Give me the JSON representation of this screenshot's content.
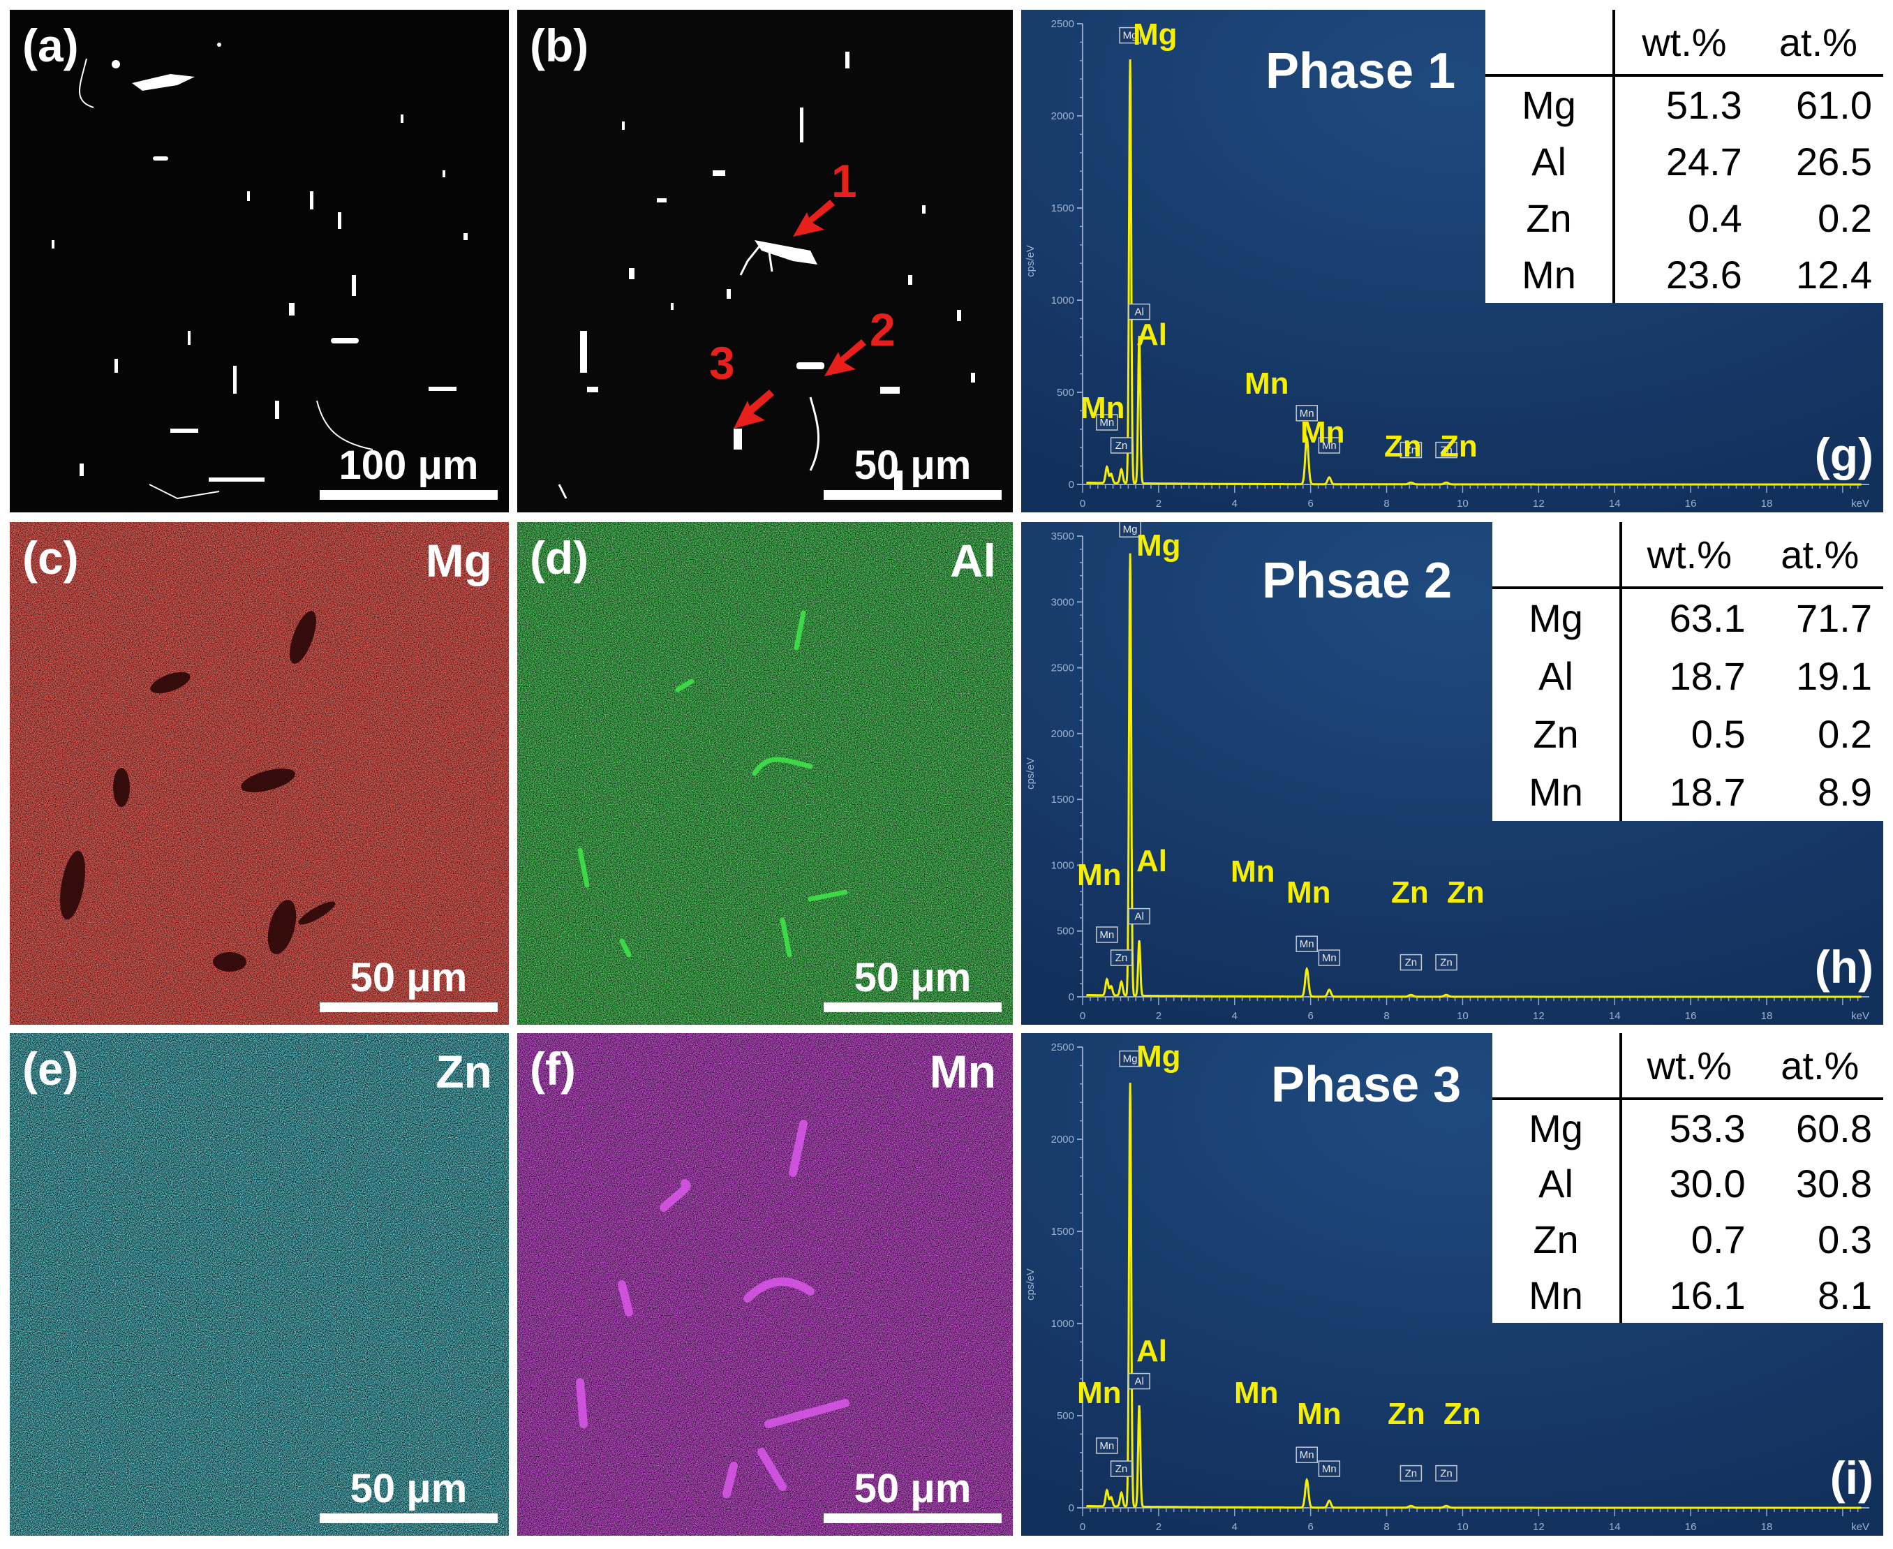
{
  "micrographs": {
    "a": {
      "label": "(a)",
      "scale": "100 μm"
    },
    "b": {
      "label": "(b)",
      "scale": "50 μm",
      "arrows": [
        "1",
        "2",
        "3"
      ]
    },
    "c": {
      "label": "(c)",
      "element": "Mg",
      "scale": "50 μm",
      "color": "#d81f1a"
    },
    "d": {
      "label": "(d)",
      "element": "Al",
      "scale": "50 μm",
      "color": "#16a020"
    },
    "e": {
      "label": "(e)",
      "element": "Zn",
      "scale": "50 μm",
      "color": "#22b2c2"
    },
    "f": {
      "label": "(f)",
      "element": "Mn",
      "scale": "50 μm",
      "color": "#a218b4"
    }
  },
  "table_headers": {
    "wt": "wt.%",
    "at": "at.%"
  },
  "eds_panels": [
    {
      "tag": "(g)",
      "title": "Phase 1",
      "y_ticks": [
        "2500",
        "2000",
        "1500",
        "1000",
        "500",
        "0"
      ],
      "x_ticks": [
        "0",
        "2",
        "4",
        "6",
        "8",
        "10",
        "12",
        "14",
        "16",
        "18"
      ],
      "x_unit": "keV",
      "y_unit": "cps/eV",
      "peak_labels": [
        "Mn",
        "Mn",
        "Zn",
        "Mg",
        "Al",
        "Mn",
        "Mn",
        "Zn",
        "Zn"
      ],
      "composition": [
        {
          "el": "Mg",
          "wt": "51.3",
          "at": "61.0"
        },
        {
          "el": "Al",
          "wt": "24.7",
          "at": "26.5"
        },
        {
          "el": "Zn",
          "wt": "0.4",
          "at": "0.2"
        },
        {
          "el": "Mn",
          "wt": "23.6",
          "at": "12.4"
        }
      ]
    },
    {
      "tag": "(h)",
      "title": "Phsae 2",
      "y_ticks": [
        "3500",
        "3000",
        "2500",
        "2000",
        "1500",
        "1000",
        "500",
        "0"
      ],
      "x_ticks": [
        "0",
        "2",
        "4",
        "6",
        "8",
        "10",
        "12",
        "14",
        "16",
        "18"
      ],
      "x_unit": "keV",
      "y_unit": "cps/eV",
      "peak_labels": [
        "Mn",
        "Mn",
        "Zn",
        "Mg",
        "Al",
        "Mn",
        "Mn",
        "Zn",
        "Zn"
      ],
      "composition": [
        {
          "el": "Mg",
          "wt": "63.1",
          "at": "71.7"
        },
        {
          "el": "Al",
          "wt": "18.7",
          "at": "19.1"
        },
        {
          "el": "Zn",
          "wt": "0.5",
          "at": "0.2"
        },
        {
          "el": "Mn",
          "wt": "18.7",
          "at": "8.9"
        }
      ]
    },
    {
      "tag": "(i)",
      "title": "Phase 3",
      "y_ticks": [
        "2500",
        "2000",
        "1500",
        "1000",
        "500",
        "0"
      ],
      "x_ticks": [
        "0",
        "2",
        "4",
        "6",
        "8",
        "10",
        "12",
        "14",
        "16",
        "18"
      ],
      "x_unit": "keV",
      "y_unit": "cps/eV",
      "peak_labels": [
        "Mn",
        "Mn",
        "Zn",
        "Mg",
        "Al",
        "Mn",
        "Mn",
        "Zn",
        "Zn"
      ],
      "composition": [
        {
          "el": "Mg",
          "wt": "53.3",
          "at": "60.8"
        },
        {
          "el": "Al",
          "wt": "30.0",
          "at": "30.8"
        },
        {
          "el": "Zn",
          "wt": "0.7",
          "at": "0.3"
        },
        {
          "el": "Mn",
          "wt": "16.1",
          "at": "8.1"
        }
      ]
    }
  ]
}
